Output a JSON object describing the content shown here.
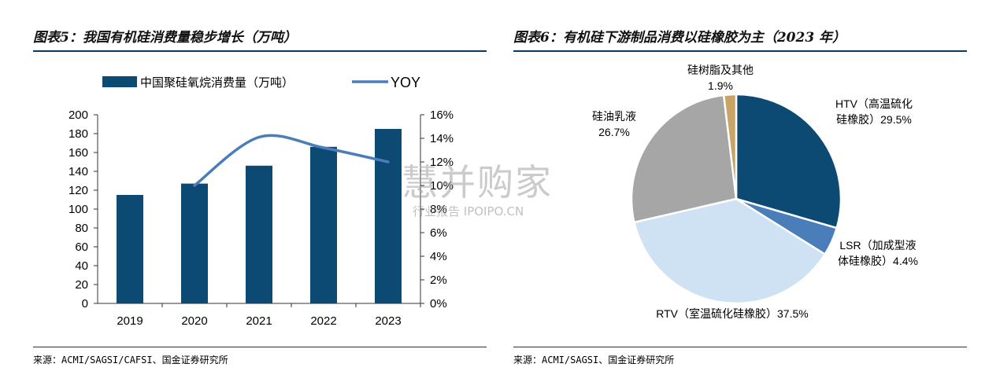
{
  "left_panel": {
    "title": "图表5：我国有机硅消费量稳步增长（万吨）",
    "source": "来源：ACMI/SAGSI/CAFSI、国金证券研究所"
  },
  "right_panel": {
    "title": "图表6：有机硅下游制品消费以硅橡胶为主（2023 年）",
    "source": "来源：ACMI/SAGSI、国金证券研究所"
  },
  "watermark": {
    "main": "慧并购家",
    "sub": "行业报告 IPOIPO.CN"
  },
  "colors": {
    "bar": "#0d4a73",
    "line": "#4a7ebb",
    "rule": "#0a3a5e"
  },
  "chart_data": [
    {
      "type": "bar",
      "categories": [
        "2019",
        "2020",
        "2021",
        "2022",
        "2023"
      ],
      "series": [
        {
          "name": "中国聚硅氧烷消费量（万吨）",
          "type": "bar",
          "axis": "left",
          "values": [
            115,
            127,
            146,
            166,
            185
          ]
        },
        {
          "name": "YOY",
          "type": "line",
          "axis": "right",
          "values": [
            null,
            10.0,
            14.1,
            13.2,
            12.0
          ]
        }
      ],
      "yticks": [
        "0",
        "20",
        "40",
        "60",
        "80",
        "100",
        "120",
        "140",
        "160",
        "180",
        "200"
      ],
      "y2ticks": [
        "0%",
        "2%",
        "4%",
        "6%",
        "8%",
        "10%",
        "12%",
        "14%",
        "16%"
      ],
      "ylim": [
        0,
        200
      ],
      "y2lim": [
        0,
        16
      ],
      "legend_position": "top"
    },
    {
      "type": "pie",
      "slices": [
        {
          "label": "HTV（高温硫化硅橡胶）",
          "line1": "HTV（高温硫化",
          "line2": "硅橡胶）29.5%",
          "value": 29.5,
          "color": "#0d4a73"
        },
        {
          "label": "LSR（加成型液体硅橡胶）",
          "line1": "LSR（加成型液",
          "line2": "体硅橡胶）4.4%",
          "value": 4.4,
          "color": "#4a7ebb"
        },
        {
          "label": "RTV（室温硫化硅橡胶）",
          "line1": "RTV（室温硫化硅橡胶）37.5%",
          "line2": "",
          "value": 37.5,
          "color": "#cfe2f3"
        },
        {
          "label": "硅油乳液",
          "line1": "硅油乳液",
          "line2": "26.7%",
          "value": 26.7,
          "color": "#a6a6a6"
        },
        {
          "label": "硅树脂及其他",
          "line1": "硅树脂及其他",
          "line2": "1.9%",
          "value": 1.9,
          "color": "#c9a464"
        }
      ]
    }
  ]
}
